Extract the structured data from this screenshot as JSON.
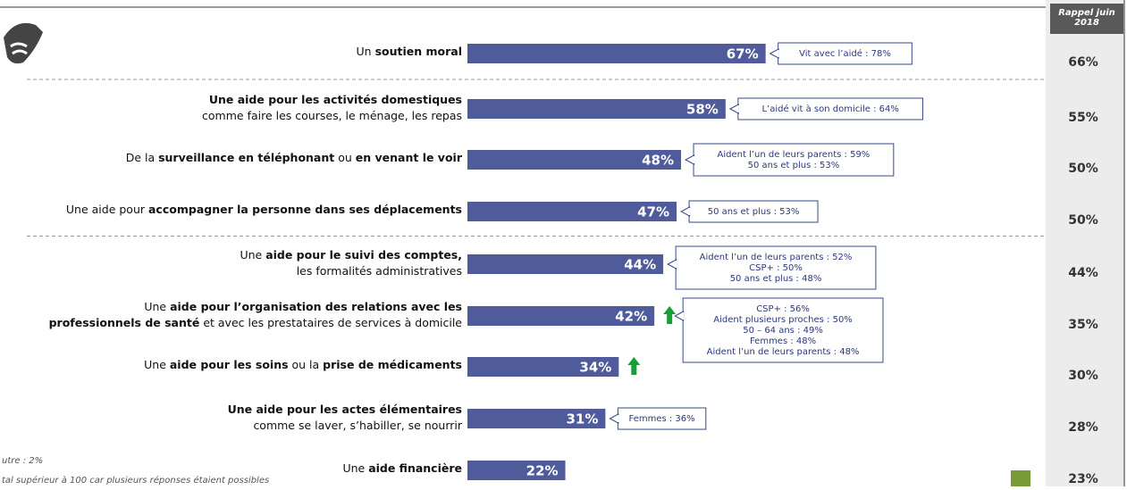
{
  "chart_data": {
    "type": "bar",
    "color": "#4f5b9b",
    "xlim": [
      0,
      100
    ],
    "categories": [
      [
        [
          {
            "text": "Un ",
            "bold": false
          },
          {
            "text": "soutien moral",
            "bold": true
          }
        ]
      ],
      [
        [
          {
            "text": "Une aide pour les activités domestiques",
            "bold": true
          }
        ],
        [
          {
            "text": "comme faire les courses, le ménage, les repas",
            "bold": false
          }
        ]
      ],
      [
        [
          {
            "text": "De la ",
            "bold": false
          },
          {
            "text": "surveillance en téléphonant",
            "bold": true
          },
          {
            "text": " ou ",
            "bold": false
          },
          {
            "text": "en venant le voir",
            "bold": true
          }
        ]
      ],
      [
        [
          {
            "text": "Une aide pour ",
            "bold": false
          },
          {
            "text": "accompagner la personne dans ses déplacements",
            "bold": true
          }
        ]
      ],
      [
        [
          {
            "text": "Une ",
            "bold": false
          },
          {
            "text": "aide pour le suivi des comptes,",
            "bold": true
          }
        ],
        [
          {
            "text": "les formalités administratives",
            "bold": false
          }
        ]
      ],
      [
        [
          {
            "text": "Une ",
            "bold": false
          },
          {
            "text": "aide pour l’organisation des relations avec les",
            "bold": true
          }
        ],
        [
          {
            "text": "professionnels de santé",
            "bold": true
          },
          {
            "text": " et avec les prestataires de services à domicile",
            "bold": false
          }
        ]
      ],
      [
        [
          {
            "text": "Une ",
            "bold": false
          },
          {
            "text": "aide pour les soins",
            "bold": true
          },
          {
            "text": " ou la ",
            "bold": false
          },
          {
            "text": "prise de médicaments",
            "bold": true
          }
        ]
      ],
      [
        [
          {
            "text": "Une aide pour les actes élémentaires",
            "bold": true
          }
        ],
        [
          {
            "text": "comme se laver, s’habiller, se nourrir",
            "bold": false
          }
        ]
      ],
      [
        [
          {
            "text": "Une ",
            "bold": false
          },
          {
            "text": "aide financière",
            "bold": true
          }
        ]
      ]
    ],
    "values": [
      67,
      58,
      48,
      47,
      44,
      42,
      34,
      31,
      22
    ],
    "value_labels": [
      "67%",
      "58%",
      "48%",
      "47%",
      "44%",
      "42%",
      "34%",
      "31%",
      "22%"
    ],
    "increase": [
      false,
      false,
      false,
      false,
      false,
      true,
      true,
      false,
      false
    ],
    "callouts": [
      [
        "Vit avec l’aidé : 78%"
      ],
      [
        "L’aidé vit à son domicile : 64%"
      ],
      [
        "Aident l’un de leurs parents : 59%",
        "50 ans et plus : 53%"
      ],
      [
        "50 ans et plus : 53%"
      ],
      [
        "Aident l’un de leurs parents : 52%",
        "CSP+ : 50%",
        "50 ans et plus : 48%"
      ],
      [
        "CSP+ : 56%",
        "Aident plusieurs proches : 50%",
        "50 – 64 ans : 49%",
        "Femmes : 48%",
        "Aident l’un de leurs parents : 48%"
      ],
      null,
      [
        "Femmes : 36%"
      ],
      null
    ],
    "separators_after": [
      0,
      3
    ],
    "previous": {
      "header": [
        "Rappel juin",
        "2018"
      ],
      "values": [
        66,
        55,
        50,
        50,
        44,
        35,
        30,
        28,
        23
      ],
      "value_labels": [
        "66%",
        "55%",
        "50%",
        "50%",
        "44%",
        "35%",
        "30%",
        "28%",
        "23%"
      ]
    },
    "footnotes": [
      "utre : 2%",
      "tal supérieur à 100 car plusieurs réponses étaient possibles"
    ]
  }
}
